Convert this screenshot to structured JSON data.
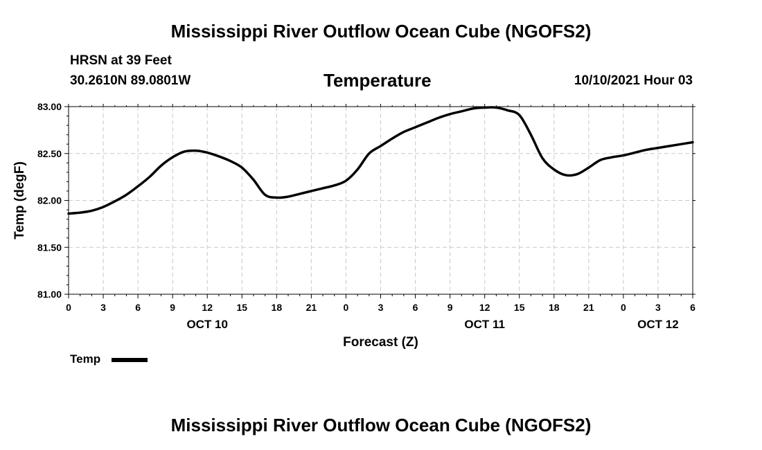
{
  "header": {
    "title": "Mississippi River Outflow Ocean Cube (NGOFS2)",
    "station": "HRSN at 39 Feet",
    "coords": "30.2610N  89.0801W",
    "subtitle": "Temperature",
    "datetime": "10/10/2021 Hour 03"
  },
  "footer": {
    "title": "Mississippi River Outflow Ocean Cube (NGOFS2)"
  },
  "legend": {
    "label": "Temp"
  },
  "chart_data": {
    "type": "line",
    "title": "Temperature",
    "xlabel": "Forecast (Z)",
    "ylabel": "Temp (degF)",
    "ylim": [
      81.0,
      83.0
    ],
    "xlim": [
      0,
      54
    ],
    "grid": true,
    "legend_position": "bottom-left",
    "yticks": [
      81.0,
      81.5,
      82.0,
      82.5,
      83.0
    ],
    "ytick_labels": [
      "81.00",
      "81.50",
      "82.00",
      "82.50",
      "83.00"
    ],
    "xticks": [
      0,
      3,
      6,
      9,
      12,
      15,
      18,
      21,
      24,
      27,
      30,
      33,
      36,
      39,
      42,
      45,
      48,
      51,
      54
    ],
    "xtick_labels": [
      "0",
      "3",
      "6",
      "9",
      "12",
      "15",
      "18",
      "21",
      "0",
      "3",
      "6",
      "9",
      "12",
      "15",
      "18",
      "21",
      "0",
      "3",
      "6"
    ],
    "day_labels": [
      {
        "label": "OCT 10",
        "x": 12
      },
      {
        "label": "OCT 11",
        "x": 36
      },
      {
        "label": "OCT 12",
        "x": 51
      }
    ],
    "series": [
      {
        "name": "Temp",
        "color": "#000000",
        "x": [
          0,
          1,
          2,
          3,
          4,
          5,
          6,
          7,
          8,
          9,
          10,
          11,
          12,
          13,
          14,
          15,
          16,
          17,
          18,
          19,
          20,
          21,
          22,
          23,
          24,
          25,
          26,
          27,
          28,
          29,
          30,
          31,
          32,
          33,
          34,
          35,
          36,
          37,
          38,
          39,
          40,
          41,
          42,
          43,
          44,
          45,
          46,
          47,
          48,
          49,
          50,
          51,
          52,
          53,
          54
        ],
        "values": [
          81.86,
          81.87,
          81.89,
          81.93,
          81.99,
          82.06,
          82.15,
          82.25,
          82.37,
          82.46,
          82.52,
          82.53,
          82.51,
          82.47,
          82.42,
          82.35,
          82.22,
          82.06,
          82.03,
          82.04,
          82.07,
          82.1,
          82.13,
          82.16,
          82.21,
          82.33,
          82.5,
          82.58,
          82.66,
          82.73,
          82.78,
          82.83,
          82.88,
          82.92,
          82.95,
          82.98,
          82.99,
          82.99,
          82.96,
          82.91,
          82.7,
          82.45,
          82.33,
          82.27,
          82.28,
          82.35,
          82.43,
          82.46,
          82.48,
          82.51,
          82.54,
          82.56,
          82.58,
          82.6,
          82.62
        ]
      }
    ]
  }
}
